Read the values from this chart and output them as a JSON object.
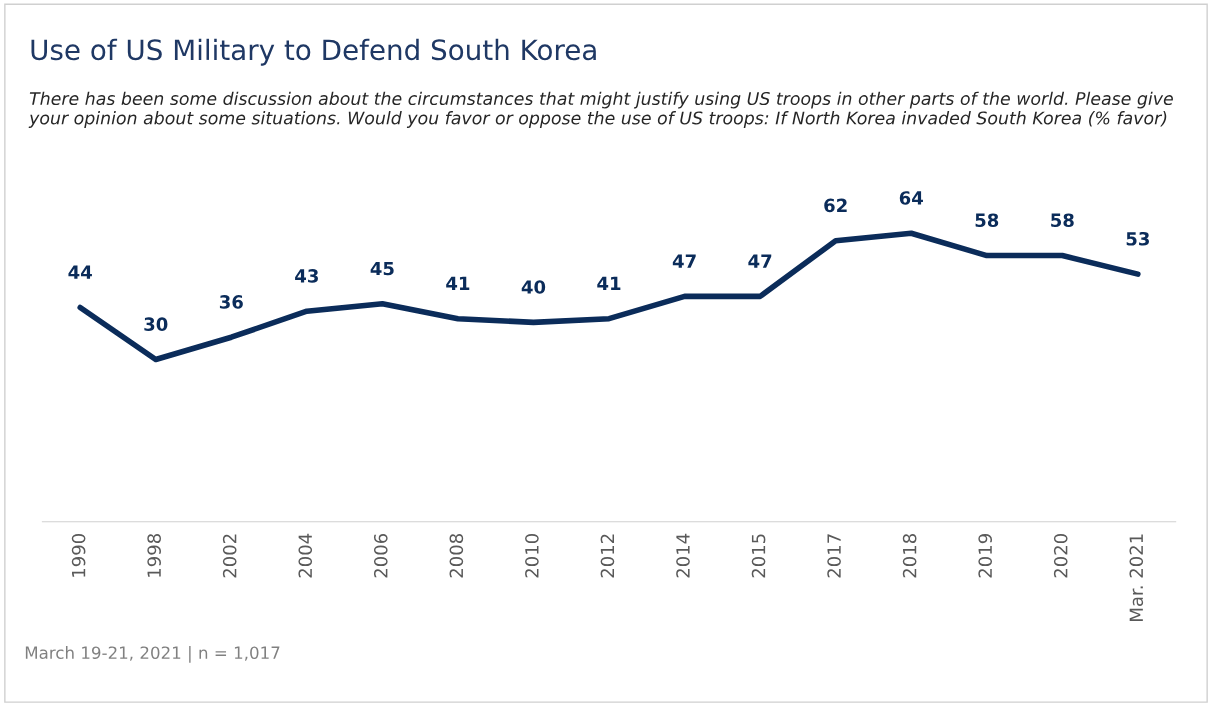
{
  "chart_data": {
    "type": "line",
    "title": "Use of US Military to Defend South Korea",
    "subtitle": "There has been some discussion about the circumstances that might justify using US troops in other parts of the world. Please give your opinion about some situations. Would you favor or oppose the use of US troops: If North Korea invaded South Korea (% favor)",
    "categories": [
      "1990",
      "1998",
      "2002",
      "2004",
      "2006",
      "2008",
      "2010",
      "2012",
      "2014",
      "2015",
      "2017",
      "2018",
      "2019",
      "2020",
      "Mar. 2021"
    ],
    "series": [
      {
        "color": "#0b2c5a",
        "values": [
          44,
          30,
          36,
          43,
          45,
          41,
          40,
          41,
          47,
          47,
          62,
          64,
          58,
          58,
          53
        ]
      }
    ],
    "tick_labels": "x",
    "data_labels": true,
    "grid": false,
    "legend": false,
    "marker": "none",
    "line_style": "solid",
    "annotations": [
      "March 19-21, 2021 | n = 1,017"
    ]
  }
}
